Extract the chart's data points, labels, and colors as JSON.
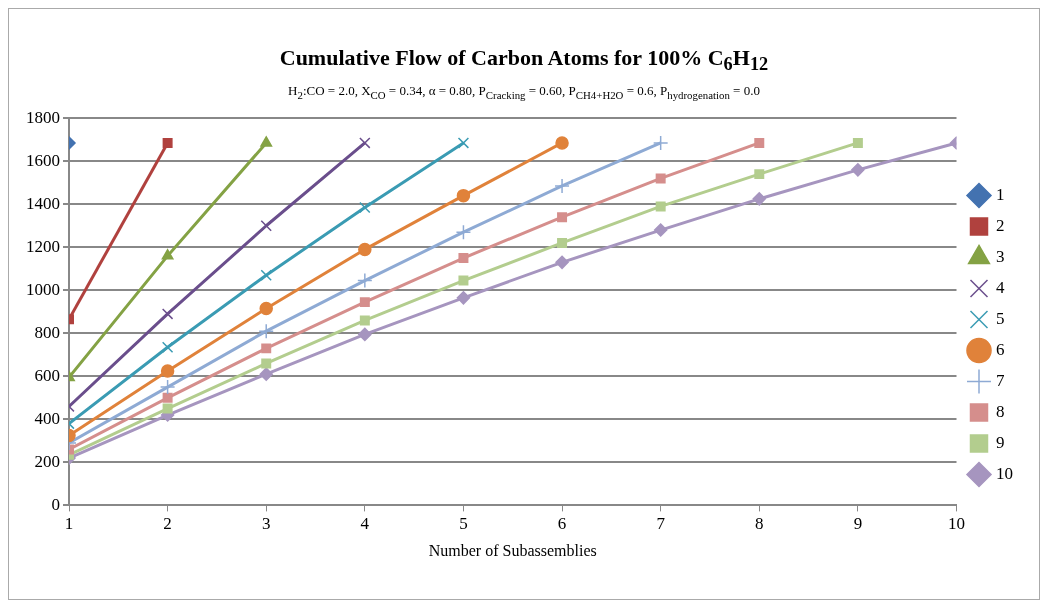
{
  "chart_data": {
    "type": "line",
    "title": "Cumulative Flow of Carbon Atoms for 100% C$_{6}$H$_{12}$",
    "subtitle": "H$_{2}$:CO = 2.0,  X$_{CO}$ = 0.34,  α = 0.80,  P$_{Cracking}$ = 0.60,  P$_{CH4+H2O}$ = 0.6,  P$_{hydrogenation}$ = 0.0",
    "xlabel": "Number of Subassemblies",
    "xlim": [
      1,
      10
    ],
    "xticks": [
      1,
      2,
      3,
      4,
      5,
      6,
      7,
      8,
      9,
      10
    ],
    "ylim": [
      0,
      1800
    ],
    "yticks": [
      0,
      200,
      400,
      600,
      800,
      1000,
      1200,
      1400,
      1600,
      1800
    ],
    "grid": "y",
    "legend": "right",
    "series": [
      {
        "name": "1",
        "color": "#4372b0",
        "marker": "diamond",
        "x": [
          1
        ],
        "values": [
          1685
        ]
      },
      {
        "name": "2",
        "color": "#b0413e",
        "marker": "square",
        "x": [
          1,
          2
        ],
        "values": [
          865,
          1685
        ]
      },
      {
        "name": "3",
        "color": "#84a244",
        "marker": "triangle",
        "x": [
          1,
          2,
          3
        ],
        "values": [
          595,
          1160,
          1685
        ]
      },
      {
        "name": "4",
        "color": "#6a4e8c",
        "marker": "cross",
        "x": [
          1,
          2,
          3,
          4
        ],
        "values": [
          460,
          890,
          1300,
          1685
        ]
      },
      {
        "name": "5",
        "color": "#3a9bb3",
        "marker": "cross",
        "x": [
          1,
          2,
          3,
          4,
          5
        ],
        "values": [
          380,
          735,
          1070,
          1385,
          1685
        ]
      },
      {
        "name": "6",
        "color": "#e0823a",
        "marker": "circle",
        "x": [
          1,
          2,
          3,
          4,
          5,
          6
        ],
        "values": [
          325,
          625,
          915,
          1190,
          1440,
          1685
        ]
      },
      {
        "name": "7",
        "color": "#8eaad4",
        "marker": "plus",
        "x": [
          1,
          2,
          3,
          4,
          5,
          6,
          7
        ],
        "values": [
          290,
          550,
          810,
          1045,
          1270,
          1485,
          1685
        ]
      },
      {
        "name": "8",
        "color": "#d58e8c",
        "marker": "square",
        "x": [
          1,
          2,
          3,
          4,
          5,
          6,
          7,
          8
        ],
        "values": [
          260,
          500,
          730,
          945,
          1150,
          1340,
          1520,
          1685
        ]
      },
      {
        "name": "9",
        "color": "#b3cd8e",
        "marker": "square",
        "x": [
          1,
          2,
          3,
          4,
          5,
          6,
          7,
          8,
          9
        ],
        "values": [
          235,
          450,
          660,
          860,
          1045,
          1220,
          1390,
          1540,
          1685
        ]
      },
      {
        "name": "10",
        "color": "#a695bf",
        "marker": "diamond",
        "x": [
          1,
          2,
          3,
          4,
          5,
          6,
          7,
          8,
          9,
          10
        ],
        "values": [
          220,
          420,
          610,
          795,
          965,
          1130,
          1280,
          1425,
          1560,
          1685
        ]
      }
    ]
  }
}
